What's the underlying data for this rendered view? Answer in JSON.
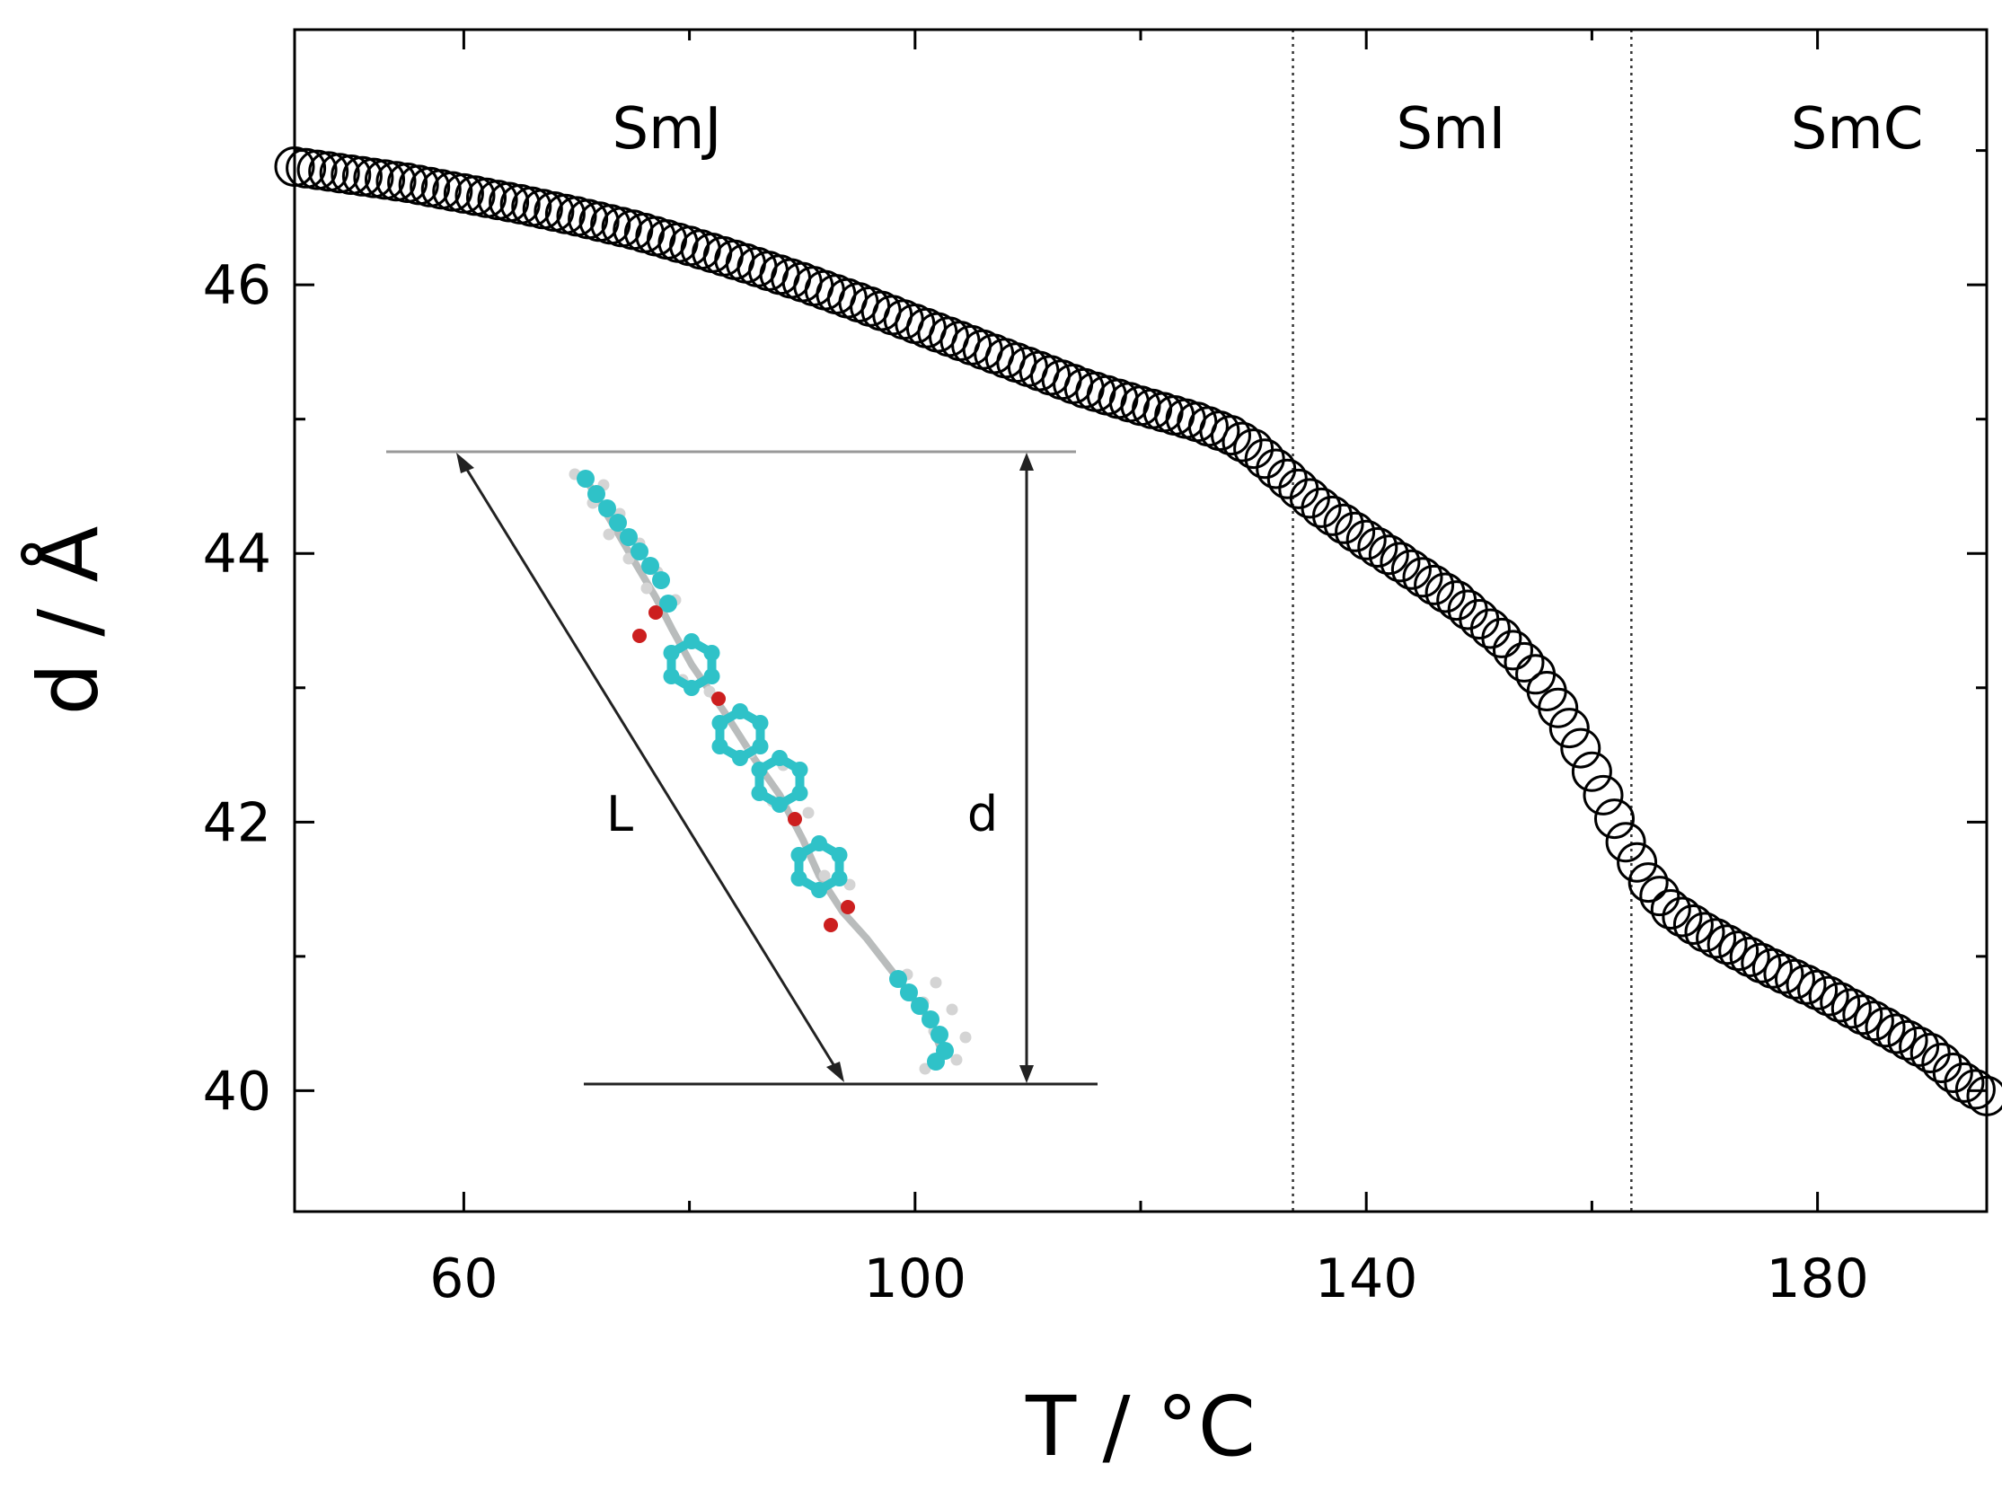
{
  "chart_data": {
    "type": "scatter",
    "title": "",
    "xlabel": "T / °C",
    "ylabel": "d / Å",
    "xlim": [
      45,
      195
    ],
    "ylim": [
      39.1,
      47.9
    ],
    "xticks": [
      60,
      100,
      140,
      180
    ],
    "xtick_labels": [
      "60",
      "100",
      "140",
      "180"
    ],
    "yticks": [
      40,
      42,
      44,
      46
    ],
    "ytick_labels": [
      "40",
      "42",
      "44",
      "46"
    ],
    "grid": false,
    "marker": "open-circle",
    "series": [
      {
        "name": "d",
        "x_start": 45,
        "x_end": 195,
        "x_step": 1,
        "curve_knots": [
          [
            45,
            46.88
          ],
          [
            50,
            46.82
          ],
          [
            55,
            46.76
          ],
          [
            60,
            46.68
          ],
          [
            65,
            46.6
          ],
          [
            70,
            46.51
          ],
          [
            75,
            46.41
          ],
          [
            80,
            46.29
          ],
          [
            85,
            46.16
          ],
          [
            90,
            46.02
          ],
          [
            95,
            45.87
          ],
          [
            100,
            45.71
          ],
          [
            105,
            45.55
          ],
          [
            110,
            45.39
          ],
          [
            115,
            45.23
          ],
          [
            120,
            45.1
          ],
          [
            125,
            44.98
          ],
          [
            128,
            44.88
          ],
          [
            130,
            44.78
          ],
          [
            132,
            44.63
          ],
          [
            134,
            44.48
          ],
          [
            136,
            44.34
          ],
          [
            140,
            44.1
          ],
          [
            144,
            43.88
          ],
          [
            148,
            43.65
          ],
          [
            152,
            43.37
          ],
          [
            155,
            43.1
          ],
          [
            157,
            42.85
          ],
          [
            159,
            42.55
          ],
          [
            161,
            42.2
          ],
          [
            163,
            41.85
          ],
          [
            165,
            41.55
          ],
          [
            167,
            41.35
          ],
          [
            170,
            41.18
          ],
          [
            175,
            40.95
          ],
          [
            180,
            40.75
          ],
          [
            185,
            40.52
          ],
          [
            190,
            40.28
          ],
          [
            193,
            40.06
          ],
          [
            195,
            39.96
          ]
        ]
      }
    ],
    "phase_boundaries": [
      133.5,
      163.5
    ],
    "phase_labels": [
      {
        "text": "SmJ",
        "x": 78
      },
      {
        "text": "SmI",
        "x": 147.5
      },
      {
        "text": "SmC",
        "x": 183.5
      }
    ],
    "inset": {
      "description": "molecular model of the mesogen",
      "length_label": "L",
      "spacing_label": "d",
      "colors": {
        "carbon": "#2fc2c8",
        "hydrogen": "#d4d4d4",
        "oxygen": "#cc1f1f",
        "bond": "#b9bcbc"
      }
    }
  }
}
